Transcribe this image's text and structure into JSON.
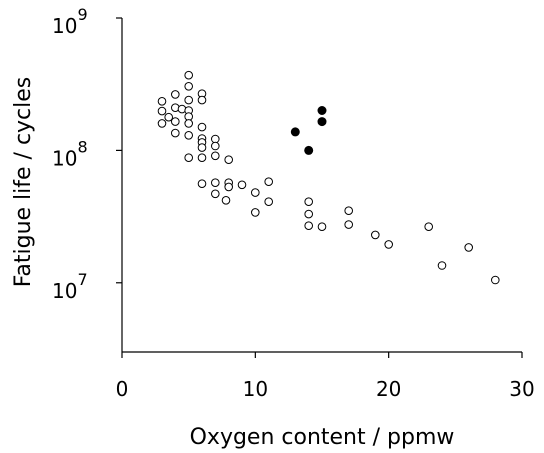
{
  "chart_data": {
    "type": "scatter",
    "title": "",
    "xlabel": "Oxygen content / ppmw",
    "ylabel": "Fatigue life / cycles",
    "xlim": [
      0,
      30
    ],
    "ylim": [
      3000000,
      1000000000
    ],
    "yscale": "log",
    "grid": false,
    "x_ticks": [
      "0",
      "10",
      "20",
      "30"
    ],
    "y_ticks": [
      {
        "base": "10",
        "exp": "7",
        "value": 10000000
      },
      {
        "base": "10",
        "exp": "8",
        "value": 100000000
      },
      {
        "base": "10",
        "exp": "9",
        "value": 1000000000
      }
    ],
    "series": [
      {
        "marker": "open-circle",
        "points": [
          {
            "x": 3,
            "y": 235000000
          },
          {
            "x": 3,
            "y": 198000000
          },
          {
            "x": 3,
            "y": 160000000
          },
          {
            "x": 3.5,
            "y": 178000000
          },
          {
            "x": 4,
            "y": 265000000
          },
          {
            "x": 4,
            "y": 210000000
          },
          {
            "x": 4,
            "y": 165000000
          },
          {
            "x": 4,
            "y": 135000000
          },
          {
            "x": 4.5,
            "y": 205000000
          },
          {
            "x": 5,
            "y": 370000000
          },
          {
            "x": 5,
            "y": 305000000
          },
          {
            "x": 5,
            "y": 240000000
          },
          {
            "x": 5,
            "y": 200000000
          },
          {
            "x": 5,
            "y": 180000000
          },
          {
            "x": 5,
            "y": 160000000
          },
          {
            "x": 5,
            "y": 130000000
          },
          {
            "x": 5,
            "y": 88000000
          },
          {
            "x": 6,
            "y": 268000000
          },
          {
            "x": 6,
            "y": 240000000
          },
          {
            "x": 6,
            "y": 150000000
          },
          {
            "x": 6,
            "y": 123000000
          },
          {
            "x": 6,
            "y": 115000000
          },
          {
            "x": 6,
            "y": 105000000
          },
          {
            "x": 6,
            "y": 88000000
          },
          {
            "x": 6,
            "y": 56000000
          },
          {
            "x": 7,
            "y": 122000000
          },
          {
            "x": 7,
            "y": 108000000
          },
          {
            "x": 7,
            "y": 91000000
          },
          {
            "x": 7,
            "y": 57000000
          },
          {
            "x": 7,
            "y": 47000000
          },
          {
            "x": 8,
            "y": 85000000
          },
          {
            "x": 8,
            "y": 57000000
          },
          {
            "x": 8,
            "y": 53000000
          },
          {
            "x": 7.8,
            "y": 42000000
          },
          {
            "x": 9,
            "y": 55000000
          },
          {
            "x": 10,
            "y": 48000000
          },
          {
            "x": 10,
            "y": 34000000
          },
          {
            "x": 11,
            "y": 58000000
          },
          {
            "x": 11,
            "y": 41000000
          },
          {
            "x": 14,
            "y": 41000000
          },
          {
            "x": 14,
            "y": 33000000
          },
          {
            "x": 14,
            "y": 27000000
          },
          {
            "x": 15,
            "y": 26500000
          },
          {
            "x": 17,
            "y": 35000000
          },
          {
            "x": 17,
            "y": 27500000
          },
          {
            "x": 19,
            "y": 23000000
          },
          {
            "x": 20,
            "y": 19500000
          },
          {
            "x": 23,
            "y": 26500000
          },
          {
            "x": 24,
            "y": 13500000
          },
          {
            "x": 26,
            "y": 18500000
          },
          {
            "x": 28,
            "y": 10500000
          }
        ]
      },
      {
        "marker": "filled-circle",
        "points": [
          {
            "x": 13,
            "y": 138000000
          },
          {
            "x": 14,
            "y": 100000000
          },
          {
            "x": 15,
            "y": 200000000
          },
          {
            "x": 15,
            "y": 165000000
          }
        ]
      }
    ]
  }
}
